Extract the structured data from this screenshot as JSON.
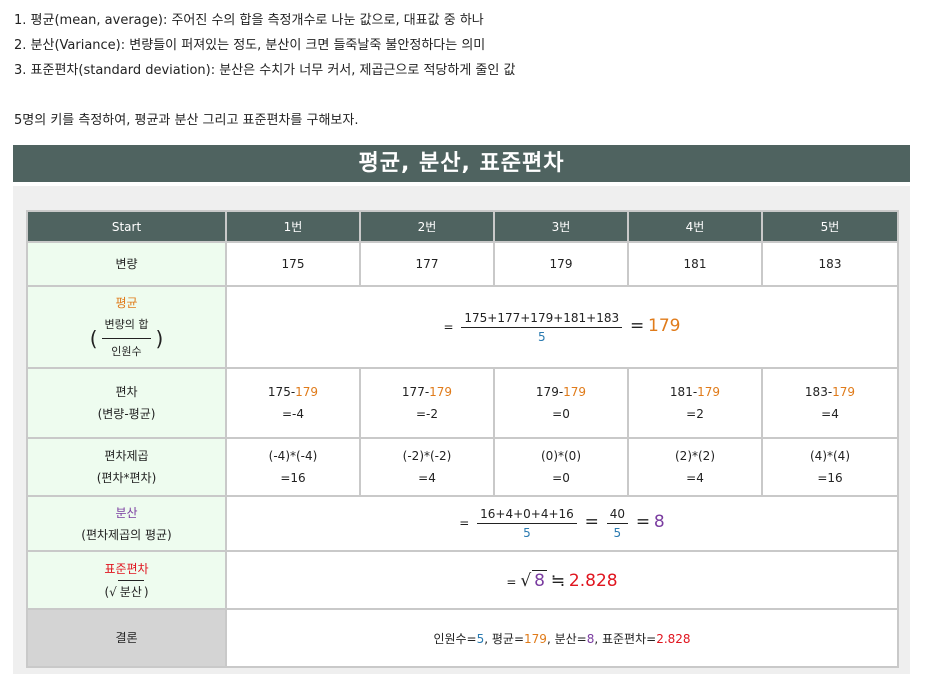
{
  "intro": {
    "items": [
      "1. 평균(mean, average): 주어진 수의 합을 측정개수로 나눈 값으로, 대표값 중 하나",
      "2. 분산(Variance): 변량들이 퍼져있는 정도, 분산이 크면 들죽날죽 불안정하다는 의미",
      "3. 표준편차(standard deviation): 분산은 수치가 너무 커서, 제곱근으로 적당하게 줄인 값"
    ],
    "prompt": "5명의 키를 측정하여, 평균과 분산 그리고 표준편차를 구해보자."
  },
  "banner": {
    "title": "평균, 분산, 표준편차"
  },
  "table": {
    "headers": [
      "Start",
      "1번",
      "2번",
      "3번",
      "4번",
      "5번"
    ],
    "variate_label": "변량",
    "values": [
      "175",
      "177",
      "179",
      "181",
      "183"
    ],
    "mean": {
      "label": "평균",
      "sub_num": "변량의 합",
      "sub_den": "인원수",
      "eq": "=",
      "numerator": "175+177+179+181+183",
      "denominator": "5",
      "eq2": "=",
      "result": "179"
    },
    "deviation": {
      "label": "편차",
      "sub": "(변량-평균)",
      "cells": [
        {
          "expr": "175-",
          "mean": "179",
          "res": "=-4"
        },
        {
          "expr": "177-",
          "mean": "179",
          "res": "=-2"
        },
        {
          "expr": "179-",
          "mean": "179",
          "res": "=0"
        },
        {
          "expr": "181-",
          "mean": "179",
          "res": "=2"
        },
        {
          "expr": "183-",
          "mean": "179",
          "res": "=4"
        }
      ]
    },
    "squared": {
      "label": "편차제곱",
      "sub": "(편차*편차)",
      "cells": [
        {
          "expr": "(-4)*(-4)",
          "res": "=16"
        },
        {
          "expr": "(-2)*(-2)",
          "res": "=4"
        },
        {
          "expr": "(0)*(0)",
          "res": "=0"
        },
        {
          "expr": "(2)*(2)",
          "res": "=4"
        },
        {
          "expr": "(4)*(4)",
          "res": "=16"
        }
      ]
    },
    "variance": {
      "label": "분산",
      "sub": "(편차제곱의 평균)",
      "eq": "=",
      "numerator": "16+4+0+4+16",
      "denominator": "5",
      "eq2": "=",
      "numerator2": "40",
      "denominator2": "5",
      "eq3": "=",
      "result": "8"
    },
    "stddev": {
      "label": "표준편차",
      "sub_open": "(",
      "sub_radical": "√",
      "sub_inner": "분산",
      "sub_close": ")",
      "eq": "=",
      "radical": "√",
      "radicand": "8",
      "approx": "≒",
      "result": "2.828"
    },
    "conclusion": {
      "label": "결론",
      "parts": [
        {
          "text": "인원수=",
          "val": "5"
        },
        {
          "text": ", 평균=",
          "val": "179"
        },
        {
          "text": ", 분산=",
          "val": "8"
        },
        {
          "text": ", 표준편차=",
          "val": "2.828"
        }
      ]
    }
  },
  "colors": {
    "header_bg": "#4f6360",
    "row_head_bg": "#eefcef",
    "orange": "#e07b1a",
    "purple": "#7a3ca0",
    "red": "#e0151f",
    "blue": "#2a7ab0"
  }
}
